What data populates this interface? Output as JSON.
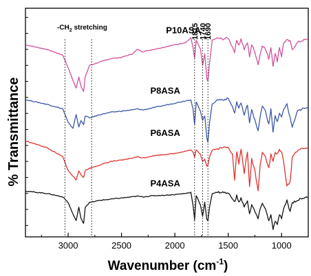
{
  "chart_data": {
    "type": "line",
    "xlabel": "Wavenumber (cm",
    "xlabel_sup": "-1",
    "xlabel_close": ")",
    "ylabel": "% Transmittance",
    "x_reversed": true,
    "xlim": [
      3400,
      750
    ],
    "ylim": [
      0,
      10
    ],
    "xticks": [
      3000,
      2500,
      2000,
      1500,
      1000
    ],
    "xticklabels": [
      "3000",
      "2500",
      "2000",
      "1500",
      "1000"
    ],
    "y_ticks_unlabeled": true,
    "grid": false,
    "annotations": {
      "ch2_prefix": "-CH",
      "ch2_sub": "2",
      "ch2_suffix": " stretching",
      "ch2_lines": [
        3030,
        2780
      ],
      "peak_labels": [
        "1815",
        "1740",
        "1690"
      ],
      "peak_lines": [
        1815,
        1740,
        1690
      ]
    },
    "series": [
      {
        "name": "P10ASA",
        "color": "#d0509a",
        "x": [
          3400,
          3200,
          3050,
          3000,
          2955,
          2925,
          2900,
          2880,
          2855,
          2840,
          2800,
          2700,
          2600,
          2500,
          2400,
          2350,
          2300,
          2200,
          2100,
          2000,
          1900,
          1850,
          1830,
          1815,
          1800,
          1780,
          1760,
          1740,
          1720,
          1700,
          1690,
          1675,
          1650,
          1600,
          1550,
          1500,
          1460,
          1440,
          1420,
          1400,
          1380,
          1350,
          1320,
          1300,
          1280,
          1250,
          1220,
          1200,
          1180,
          1150,
          1120,
          1100,
          1080,
          1060,
          1040,
          1020,
          1000,
          980,
          950,
          920,
          900,
          850,
          800,
          750
        ],
        "y": [
          8.4,
          8.2,
          7.95,
          7.4,
          6.85,
          6.5,
          7.0,
          6.6,
          6.35,
          7.0,
          7.5,
          7.65,
          7.8,
          7.85,
          8.0,
          8.2,
          8.1,
          8.2,
          8.3,
          8.4,
          8.5,
          8.7,
          8.3,
          7.8,
          8.6,
          8.4,
          8.2,
          7.5,
          8.0,
          6.9,
          6.8,
          7.6,
          8.6,
          8.7,
          8.65,
          8.7,
          8.3,
          8.1,
          8.6,
          8.4,
          8.65,
          8.2,
          8.5,
          7.9,
          8.4,
          8.1,
          7.55,
          8.0,
          8.4,
          8.2,
          7.8,
          8.3,
          7.5,
          8.0,
          7.7,
          8.3,
          7.9,
          8.5,
          8.6,
          8.55,
          8.2,
          8.5,
          8.6,
          8.65
        ]
      },
      {
        "name": "P8ASA",
        "color": "#3b57a6",
        "x": [
          3400,
          3200,
          3050,
          3000,
          2955,
          2925,
          2900,
          2880,
          2855,
          2840,
          2800,
          2700,
          2600,
          2500,
          2400,
          2350,
          2300,
          2200,
          2100,
          2000,
          1900,
          1850,
          1830,
          1815,
          1800,
          1780,
          1760,
          1740,
          1720,
          1700,
          1690,
          1675,
          1650,
          1600,
          1550,
          1500,
          1460,
          1440,
          1420,
          1400,
          1380,
          1350,
          1320,
          1300,
          1280,
          1250,
          1220,
          1200,
          1180,
          1150,
          1120,
          1100,
          1080,
          1060,
          1040,
          1020,
          1000,
          980,
          950,
          920,
          900,
          850,
          800,
          750
        ],
        "y": [
          6.0,
          5.8,
          5.6,
          5.0,
          4.75,
          5.35,
          4.8,
          5.1,
          4.9,
          5.3,
          5.2,
          5.35,
          5.45,
          5.5,
          5.55,
          5.6,
          5.55,
          5.65,
          5.75,
          5.85,
          5.95,
          6.0,
          5.6,
          4.9,
          5.9,
          5.7,
          5.5,
          5.1,
          5.3,
          4.3,
          4.15,
          5.0,
          5.8,
          6.0,
          6.0,
          6.05,
          5.7,
          5.4,
          5.9,
          5.6,
          5.9,
          5.3,
          5.8,
          5.0,
          5.6,
          5.1,
          4.6,
          5.3,
          5.7,
          5.5,
          4.9,
          5.6,
          4.6,
          5.3,
          5.0,
          5.4,
          5.2,
          5.6,
          5.8,
          5.2,
          4.8,
          5.5,
          5.6,
          5.65
        ]
      },
      {
        "name": "P6ASA",
        "color": "#e0332f",
        "x": [
          3400,
          3200,
          3050,
          3000,
          2955,
          2925,
          2900,
          2880,
          2855,
          2840,
          2800,
          2700,
          2600,
          2500,
          2400,
          2350,
          2300,
          2200,
          2100,
          2000,
          1900,
          1850,
          1830,
          1815,
          1800,
          1780,
          1760,
          1740,
          1720,
          1700,
          1690,
          1675,
          1650,
          1600,
          1550,
          1500,
          1460,
          1440,
          1420,
          1400,
          1380,
          1350,
          1320,
          1300,
          1280,
          1250,
          1220,
          1200,
          1180,
          1150,
          1120,
          1100,
          1080,
          1060,
          1040,
          1020,
          1000,
          980,
          950,
          920,
          900,
          850,
          800,
          750
        ],
        "y": [
          4.2,
          3.9,
          3.5,
          2.9,
          2.65,
          2.5,
          2.9,
          2.7,
          2.6,
          2.9,
          3.0,
          3.15,
          3.3,
          3.35,
          3.45,
          3.5,
          3.45,
          3.55,
          3.6,
          3.65,
          3.75,
          3.8,
          3.7,
          3.5,
          3.8,
          3.7,
          3.6,
          3.3,
          3.4,
          3.1,
          3.15,
          3.5,
          3.8,
          3.85,
          3.9,
          3.95,
          3.6,
          2.5,
          3.7,
          3.2,
          3.85,
          2.8,
          3.7,
          2.2,
          3.4,
          2.9,
          2.0,
          3.2,
          3.7,
          3.5,
          3.0,
          3.6,
          3.3,
          3.7,
          3.6,
          3.8,
          3.7,
          3.3,
          2.2,
          2.4,
          3.5,
          3.8,
          3.85,
          3.9
        ]
      },
      {
        "name": "P4ASA",
        "color": "#111111",
        "x": [
          3400,
          3200,
          3050,
          3000,
          2955,
          2925,
          2900,
          2880,
          2855,
          2840,
          2800,
          2700,
          2600,
          2500,
          2400,
          2350,
          2300,
          2200,
          2100,
          2000,
          1900,
          1850,
          1830,
          1815,
          1800,
          1780,
          1760,
          1740,
          1720,
          1700,
          1690,
          1675,
          1650,
          1600,
          1550,
          1500,
          1460,
          1440,
          1420,
          1400,
          1380,
          1350,
          1320,
          1300,
          1280,
          1250,
          1220,
          1200,
          1180,
          1150,
          1120,
          1100,
          1080,
          1060,
          1040,
          1020,
          1000,
          980,
          950,
          920,
          900,
          850,
          800,
          750
        ],
        "y": [
          2.0,
          1.9,
          1.75,
          1.5,
          1.0,
          0.7,
          1.3,
          0.8,
          0.6,
          1.3,
          1.5,
          1.6,
          1.65,
          1.7,
          1.75,
          1.78,
          1.75,
          1.8,
          1.82,
          1.85,
          1.9,
          1.95,
          1.4,
          0.75,
          1.8,
          1.6,
          1.4,
          0.9,
          1.5,
          0.75,
          0.7,
          1.3,
          1.9,
          1.95,
          1.95,
          1.9,
          1.7,
          1.5,
          1.8,
          1.5,
          1.7,
          1.3,
          1.6,
          1.0,
          1.4,
          1.1,
          0.8,
          1.2,
          1.5,
          1.2,
          0.7,
          1.0,
          0.3,
          0.7,
          0.5,
          1.0,
          0.8,
          1.2,
          1.6,
          1.1,
          1.5,
          1.6,
          1.7,
          1.75
        ]
      }
    ],
    "series_label_positions_wavenumber": [
      1920,
      2090,
      2090,
      2090
    ]
  }
}
